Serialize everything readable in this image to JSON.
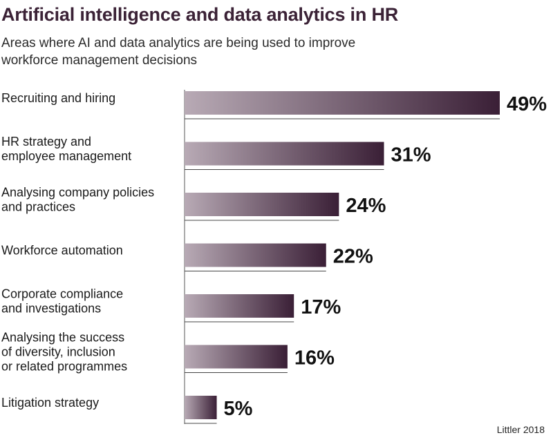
{
  "title": "Artificial intelligence and data analytics in HR",
  "subtitle": "Areas where AI and data analytics are being used to improve workforce management decisions",
  "source": "Littler 2018",
  "colors": {
    "bar_dark": "#3a1f36",
    "bar_light": "#b8aab5",
    "title": "#3b2236"
  },
  "chart_data": {
    "type": "bar",
    "orientation": "horizontal",
    "categories": [
      "Recruiting and hiring",
      "HR strategy and employee management",
      "Analysing company policies and practices",
      "Workforce automation",
      "Corporate compliance and investigations",
      "Analysing the success of diversity, inclusion or related programmes",
      "Litigation strategy"
    ],
    "category_lines": [
      [
        "Recruiting and hiring"
      ],
      [
        "HR strategy and",
        "employee management"
      ],
      [
        "Analysing company policies",
        "and practices"
      ],
      [
        "Workforce automation"
      ],
      [
        "Corporate compliance",
        "and investigations"
      ],
      [
        "Analysing the success",
        "of diversity, inclusion",
        "or related programmes"
      ],
      [
        "Litigation strategy"
      ]
    ],
    "values": [
      49,
      31,
      24,
      22,
      17,
      16,
      5
    ],
    "value_labels": [
      "49%",
      "31%",
      "24%",
      "22%",
      "17%",
      "16%",
      "5%"
    ],
    "unit": "%",
    "xlim": [
      0,
      49
    ]
  }
}
